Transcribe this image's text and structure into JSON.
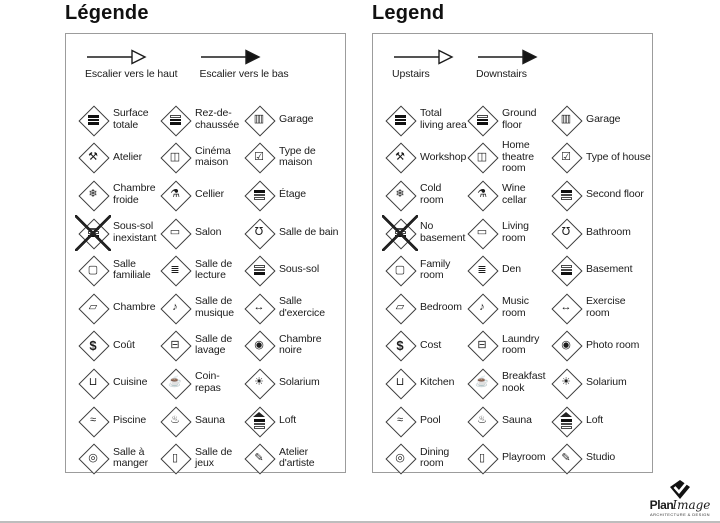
{
  "panels": [
    {
      "id": "fr",
      "title": "Légende",
      "stairs": [
        {
          "label": "Escalier vers le haut",
          "style": "open",
          "icon": "stairs-up-arrow-icon"
        },
        {
          "label": "Escalier vers le bas",
          "style": "solid",
          "icon": "stairs-down-arrow-icon"
        }
      ],
      "items": [
        {
          "label": "Surface totale",
          "icon": "total-living-area-icon",
          "bars": [
            1,
            1,
            1
          ]
        },
        {
          "label": "Rez-de-chaussée",
          "icon": "ground-floor-icon",
          "bars": [
            0,
            1,
            1
          ]
        },
        {
          "label": "Garage",
          "icon": "garage-icon",
          "glyph": "▥"
        },
        {
          "label": "Atelier",
          "icon": "workshop-hammer-icon",
          "glyph": "⚒"
        },
        {
          "label": "Cinéma maison",
          "icon": "home-theatre-icon",
          "glyph": "◫"
        },
        {
          "label": "Type de maison",
          "icon": "house-type-check-icon",
          "glyph": "☑"
        },
        {
          "label": "Chambre froide",
          "icon": "cold-room-icon",
          "glyph": "❄"
        },
        {
          "label": "Cellier",
          "icon": "wine-cellar-icon",
          "glyph": "⚗"
        },
        {
          "label": "Étage",
          "icon": "second-floor-icon",
          "bars": [
            1,
            0,
            0
          ]
        },
        {
          "label": "Sous-sol inexistant",
          "icon": "no-basement-icon",
          "bars": [
            0,
            0,
            1
          ],
          "cross": true
        },
        {
          "label": "Salon",
          "icon": "living-room-sofa-icon",
          "glyph": "▭"
        },
        {
          "label": "Salle de bain",
          "icon": "bathroom-icon",
          "glyph": "℧"
        },
        {
          "label": "Salle familiale",
          "icon": "family-room-tv-icon",
          "glyph": "▢"
        },
        {
          "label": "Salle de lecture",
          "icon": "den-book-icon",
          "glyph": "≣"
        },
        {
          "label": "Sous-sol",
          "icon": "basement-icon",
          "bars": [
            0,
            0,
            1
          ]
        },
        {
          "label": "Chambre",
          "icon": "bedroom-icon",
          "glyph": "▱"
        },
        {
          "label": "Salle de musique",
          "icon": "music-room-icon",
          "glyph": "♪"
        },
        {
          "label": "Salle d'exercice",
          "icon": "exercise-room-icon",
          "glyph": "↔"
        },
        {
          "label": "Coût",
          "icon": "cost-icon",
          "glyph": "$"
        },
        {
          "label": "Salle de lavage",
          "icon": "laundry-room-icon",
          "glyph": "⊟"
        },
        {
          "label": "Chambre noire",
          "icon": "photo-room-camera-icon",
          "glyph": "◉"
        },
        {
          "label": "Cuisine",
          "icon": "kitchen-pot-icon",
          "glyph": "⊔"
        },
        {
          "label": "Coin-repas",
          "icon": "breakfast-nook-icon",
          "glyph": "☕"
        },
        {
          "label": "Solarium",
          "icon": "solarium-sun-icon",
          "glyph": "☀"
        },
        {
          "label": "Piscine",
          "icon": "pool-swimmer-icon",
          "glyph": "≈"
        },
        {
          "label": "Sauna",
          "icon": "sauna-icon",
          "glyph": "♨"
        },
        {
          "label": "Loft",
          "icon": "loft-icon",
          "bars": [
            1,
            0,
            0
          ],
          "roof": true
        },
        {
          "label": "Salle à manger",
          "icon": "dining-room-plate-icon",
          "glyph": "◎"
        },
        {
          "label": "Salle de jeux",
          "icon": "playroom-icon",
          "glyph": "▯"
        },
        {
          "label": "Atelier d'artiste",
          "icon": "studio-artist-icon",
          "glyph": "✎"
        }
      ]
    },
    {
      "id": "en",
      "title": "Legend",
      "stairs": [
        {
          "label": "Upstairs",
          "style": "open",
          "icon": "stairs-up-arrow-icon"
        },
        {
          "label": "Downstairs",
          "style": "solid",
          "icon": "stairs-down-arrow-icon"
        }
      ],
      "items": [
        {
          "label": "Total living area",
          "icon": "total-living-area-icon",
          "bars": [
            1,
            1,
            1
          ]
        },
        {
          "label": "Ground floor",
          "icon": "ground-floor-icon",
          "bars": [
            0,
            1,
            1
          ]
        },
        {
          "label": "Garage",
          "icon": "garage-icon",
          "glyph": "▥"
        },
        {
          "label": "Workshop",
          "icon": "workshop-hammer-icon",
          "glyph": "⚒"
        },
        {
          "label": "Home theatre room",
          "icon": "home-theatre-icon",
          "glyph": "◫"
        },
        {
          "label": "Type of house",
          "icon": "house-type-check-icon",
          "glyph": "☑"
        },
        {
          "label": "Cold room",
          "icon": "cold-room-icon",
          "glyph": "❄"
        },
        {
          "label": "Wine cellar",
          "icon": "wine-cellar-icon",
          "glyph": "⚗"
        },
        {
          "label": "Second floor",
          "icon": "second-floor-icon",
          "bars": [
            1,
            0,
            0
          ]
        },
        {
          "label": "No basement",
          "icon": "no-basement-icon",
          "bars": [
            0,
            0,
            1
          ],
          "cross": true
        },
        {
          "label": "Living room",
          "icon": "living-room-sofa-icon",
          "glyph": "▭"
        },
        {
          "label": "Bathroom",
          "icon": "bathroom-icon",
          "glyph": "℧"
        },
        {
          "label": "Family room",
          "icon": "family-room-tv-icon",
          "glyph": "▢"
        },
        {
          "label": "Den",
          "icon": "den-book-icon",
          "glyph": "≣"
        },
        {
          "label": "Basement",
          "icon": "basement-icon",
          "bars": [
            0,
            0,
            1
          ]
        },
        {
          "label": "Bedroom",
          "icon": "bedroom-icon",
          "glyph": "▱"
        },
        {
          "label": "Music room",
          "icon": "music-room-icon",
          "glyph": "♪"
        },
        {
          "label": "Exercise room",
          "icon": "exercise-room-icon",
          "glyph": "↔"
        },
        {
          "label": "Cost",
          "icon": "cost-icon",
          "glyph": "$"
        },
        {
          "label": "Laundry room",
          "icon": "laundry-room-icon",
          "glyph": "⊟"
        },
        {
          "label": "Photo room",
          "icon": "photo-room-camera-icon",
          "glyph": "◉"
        },
        {
          "label": "Kitchen",
          "icon": "kitchen-pot-icon",
          "glyph": "⊔"
        },
        {
          "label": "Breakfast nook",
          "icon": "breakfast-nook-icon",
          "glyph": "☕"
        },
        {
          "label": "Solarium",
          "icon": "solarium-sun-icon",
          "glyph": "☀"
        },
        {
          "label": "Pool",
          "icon": "pool-swimmer-icon",
          "glyph": "≈"
        },
        {
          "label": "Sauna",
          "icon": "sauna-icon",
          "glyph": "♨"
        },
        {
          "label": "Loft",
          "icon": "loft-icon",
          "bars": [
            1,
            0,
            0
          ],
          "roof": true
        },
        {
          "label": "Dining room",
          "icon": "dining-room-plate-icon",
          "glyph": "◎"
        },
        {
          "label": "Playroom",
          "icon": "playroom-icon",
          "glyph": "▯"
        },
        {
          "label": "Studio",
          "icon": "studio-artist-icon",
          "glyph": "✎"
        }
      ]
    }
  ],
  "logo": {
    "plan": "Plan",
    "image": "Image",
    "tagline": "ARCHITECTURE & DESIGN"
  }
}
